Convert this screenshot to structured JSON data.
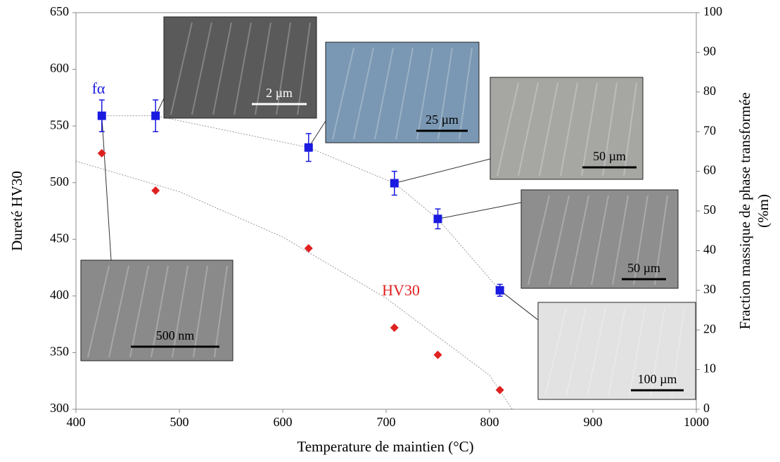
{
  "chart_data": {
    "type": "scatter",
    "xlabel": "Temperature  de maintien (°C)",
    "ylabel": "Dureté HV30",
    "y2label": [
      "Fraction massique de phase transformée",
      "(%m)"
    ],
    "xlim": [
      400,
      1000
    ],
    "xticks": [
      400,
      500,
      600,
      700,
      800,
      900,
      1000
    ],
    "ylim": [
      300,
      650
    ],
    "yticks": [
      300,
      350,
      400,
      450,
      500,
      550,
      600,
      650
    ],
    "y2lim": [
      0,
      100
    ],
    "y2ticks": [
      0,
      10,
      20,
      30,
      40,
      50,
      60,
      70,
      80,
      90,
      100
    ],
    "x": [
      425,
      477,
      625,
      708,
      750,
      810
    ],
    "series": [
      {
        "name": "HV30",
        "color": "#e02020",
        "marker": "diamond",
        "values": [
          526,
          493,
          442,
          372,
          348,
          317
        ],
        "trend": {
          "x": [
            400,
            500,
            600,
            700,
            800,
            822
          ],
          "values": [
            519,
            492,
            452,
            398,
            330,
            300
          ]
        }
      },
      {
        "name": "fα",
        "color": "#1a1ae0",
        "marker": "square",
        "axis": "y2",
        "trendline": true,
        "values": [
          74,
          74,
          66,
          57,
          48,
          30
        ],
        "errors": [
          4,
          4,
          3.5,
          3,
          2.5,
          1.5
        ]
      }
    ],
    "insets": [
      "2 µm",
      "25 µm",
      "50 µm",
      "50 µm",
      "100 µm",
      "500 nm"
    ]
  }
}
